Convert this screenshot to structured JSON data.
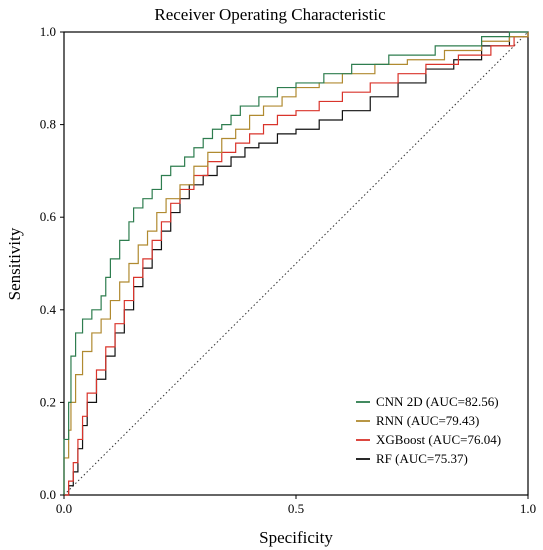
{
  "chart_data": {
    "type": "line",
    "title": "Receiver Operating Characteristic",
    "xlabel": "Specificity",
    "ylabel": "Sensitivity",
    "xlim": [
      0,
      1
    ],
    "ylim": [
      0,
      1
    ],
    "x_ticks": [
      0.0,
      0.5,
      1.0
    ],
    "x_tick_labels": [
      "0.0",
      "0.5",
      "1.0"
    ],
    "y_ticks": [
      0.0,
      0.2,
      0.4,
      0.6,
      0.8,
      1.0
    ],
    "y_tick_labels": [
      "0.0",
      "0.2",
      "0.4",
      "0.6",
      "0.8",
      "1.0"
    ],
    "grid": false,
    "legend_position": "bottom-right",
    "diagonal_reference": true,
    "series": [
      {
        "name": "CNN 2D (AUC=82.56)",
        "color": "#2e7d4f",
        "points": [
          [
            0,
            0
          ],
          [
            0,
            0.12
          ],
          [
            0.01,
            0.2
          ],
          [
            0.015,
            0.3
          ],
          [
            0.025,
            0.35
          ],
          [
            0.04,
            0.38
          ],
          [
            0.06,
            0.4
          ],
          [
            0.08,
            0.43
          ],
          [
            0.09,
            0.47
          ],
          [
            0.1,
            0.51
          ],
          [
            0.12,
            0.55
          ],
          [
            0.14,
            0.59
          ],
          [
            0.15,
            0.62
          ],
          [
            0.17,
            0.64
          ],
          [
            0.19,
            0.66
          ],
          [
            0.21,
            0.69
          ],
          [
            0.23,
            0.71
          ],
          [
            0.26,
            0.73
          ],
          [
            0.28,
            0.75
          ],
          [
            0.3,
            0.77
          ],
          [
            0.32,
            0.79
          ],
          [
            0.34,
            0.8
          ],
          [
            0.36,
            0.82
          ],
          [
            0.38,
            0.84
          ],
          [
            0.42,
            0.86
          ],
          [
            0.46,
            0.88
          ],
          [
            0.5,
            0.89
          ],
          [
            0.56,
            0.91
          ],
          [
            0.62,
            0.93
          ],
          [
            0.7,
            0.95
          ],
          [
            0.8,
            0.97
          ],
          [
            0.9,
            0.99
          ],
          [
            0.96,
            1.0
          ],
          [
            1,
            1
          ]
        ]
      },
      {
        "name": "RNN (AUC=79.43)",
        "color": "#b08a30",
        "points": [
          [
            0,
            0
          ],
          [
            0,
            0.08
          ],
          [
            0.01,
            0.14
          ],
          [
            0.015,
            0.2
          ],
          [
            0.025,
            0.26
          ],
          [
            0.04,
            0.31
          ],
          [
            0.06,
            0.35
          ],
          [
            0.08,
            0.38
          ],
          [
            0.1,
            0.42
          ],
          [
            0.12,
            0.46
          ],
          [
            0.14,
            0.5
          ],
          [
            0.16,
            0.54
          ],
          [
            0.18,
            0.57
          ],
          [
            0.2,
            0.61
          ],
          [
            0.22,
            0.64
          ],
          [
            0.25,
            0.67
          ],
          [
            0.28,
            0.71
          ],
          [
            0.31,
            0.74
          ],
          [
            0.34,
            0.77
          ],
          [
            0.37,
            0.79
          ],
          [
            0.4,
            0.82
          ],
          [
            0.43,
            0.84
          ],
          [
            0.47,
            0.86
          ],
          [
            0.5,
            0.88
          ],
          [
            0.55,
            0.89
          ],
          [
            0.6,
            0.91
          ],
          [
            0.67,
            0.93
          ],
          [
            0.74,
            0.94
          ],
          [
            0.82,
            0.96
          ],
          [
            0.9,
            0.98
          ],
          [
            0.96,
            0.99
          ],
          [
            1,
            1
          ]
        ]
      },
      {
        "name": "XGBoost (AUC=76.04)",
        "color": "#d9342b",
        "points": [
          [
            0,
            0
          ],
          [
            0.01,
            0.03
          ],
          [
            0.02,
            0.07
          ],
          [
            0.03,
            0.12
          ],
          [
            0.04,
            0.17
          ],
          [
            0.05,
            0.22
          ],
          [
            0.07,
            0.27
          ],
          [
            0.09,
            0.32
          ],
          [
            0.11,
            0.37
          ],
          [
            0.13,
            0.42
          ],
          [
            0.15,
            0.47
          ],
          [
            0.17,
            0.51
          ],
          [
            0.19,
            0.55
          ],
          [
            0.21,
            0.59
          ],
          [
            0.23,
            0.63
          ],
          [
            0.25,
            0.66
          ],
          [
            0.28,
            0.69
          ],
          [
            0.31,
            0.72
          ],
          [
            0.34,
            0.74
          ],
          [
            0.37,
            0.76
          ],
          [
            0.4,
            0.78
          ],
          [
            0.43,
            0.8
          ],
          [
            0.46,
            0.82
          ],
          [
            0.5,
            0.83
          ],
          [
            0.55,
            0.85
          ],
          [
            0.6,
            0.87
          ],
          [
            0.66,
            0.89
          ],
          [
            0.72,
            0.91
          ],
          [
            0.78,
            0.93
          ],
          [
            0.85,
            0.95
          ],
          [
            0.92,
            0.97
          ],
          [
            0.97,
            0.99
          ],
          [
            1,
            1
          ]
        ]
      },
      {
        "name": "RF (AUC=75.37)",
        "color": "#111111",
        "points": [
          [
            0,
            0
          ],
          [
            0.01,
            0.02
          ],
          [
            0.02,
            0.05
          ],
          [
            0.03,
            0.1
          ],
          [
            0.04,
            0.15
          ],
          [
            0.05,
            0.2
          ],
          [
            0.07,
            0.25
          ],
          [
            0.09,
            0.3
          ],
          [
            0.11,
            0.35
          ],
          [
            0.13,
            0.4
          ],
          [
            0.15,
            0.45
          ],
          [
            0.17,
            0.49
          ],
          [
            0.19,
            0.53
          ],
          [
            0.21,
            0.57
          ],
          [
            0.23,
            0.61
          ],
          [
            0.25,
            0.64
          ],
          [
            0.27,
            0.67
          ],
          [
            0.3,
            0.69
          ],
          [
            0.33,
            0.71
          ],
          [
            0.36,
            0.73
          ],
          [
            0.39,
            0.75
          ],
          [
            0.42,
            0.76
          ],
          [
            0.46,
            0.78
          ],
          [
            0.5,
            0.79
          ],
          [
            0.55,
            0.81
          ],
          [
            0.6,
            0.83
          ],
          [
            0.66,
            0.86
          ],
          [
            0.72,
            0.89
          ],
          [
            0.78,
            0.92
          ],
          [
            0.84,
            0.94
          ],
          [
            0.9,
            0.97
          ],
          [
            0.96,
            0.99
          ],
          [
            1,
            1
          ]
        ]
      }
    ]
  }
}
